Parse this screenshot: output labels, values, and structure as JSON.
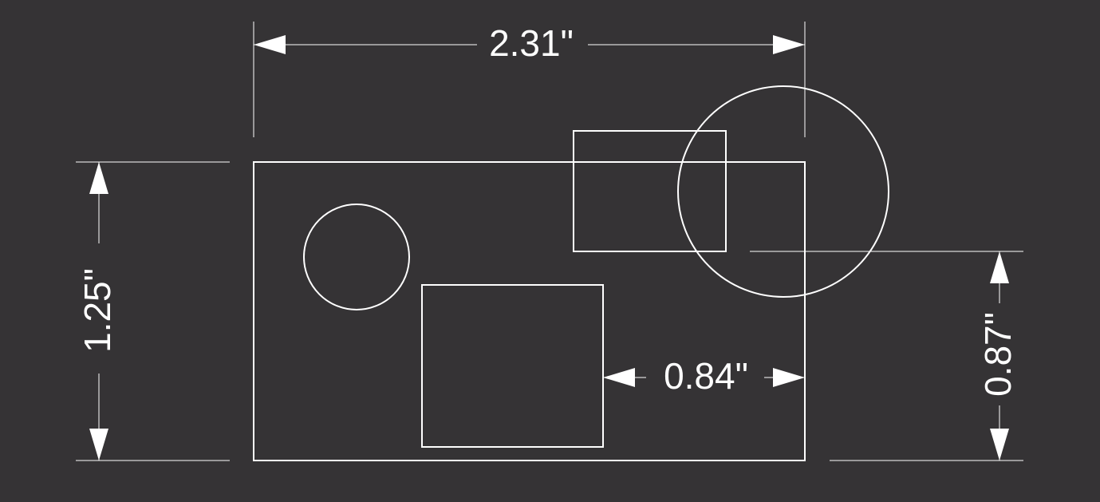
{
  "colors": {
    "background": "#353335",
    "stroke": "#ffffff",
    "text": "#ffffff"
  },
  "dimensions": {
    "overall_width": "2.31\"",
    "overall_height": "1.25\"",
    "right_offset": "0.84\"",
    "circle_offset": "0.87\""
  }
}
